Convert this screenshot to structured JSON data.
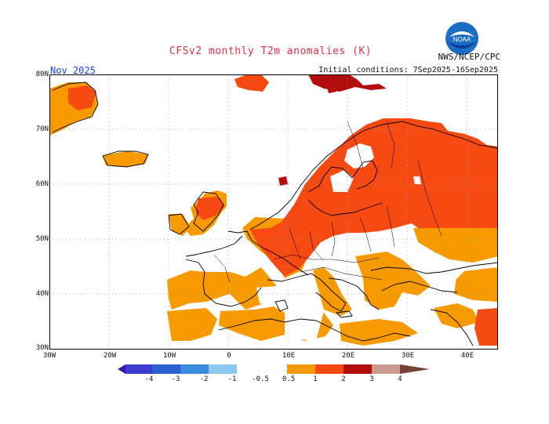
{
  "title": "CFSv2 monthly T2m anomalies (K)",
  "agency": "NWS/NCEP/CPC",
  "logo_text": "NOAA",
  "month": "Nov 2025",
  "initial_conditions": "Initial conditions: 7Sep2025-16Sep2025",
  "lat_labels": [
    "80N",
    "70N",
    "60N",
    "50N",
    "40N",
    "30N"
  ],
  "lon_labels": [
    "30W",
    "20W",
    "10W",
    "0",
    "10E",
    "20E",
    "30E",
    "40E"
  ],
  "colorbar": {
    "labels": [
      "-4",
      "-3",
      "-2",
      "-1",
      "-0.5",
      "0.5",
      "1",
      "2",
      "3",
      "4"
    ],
    "colors": {
      "lt_-4": "#3a1aa0",
      "-4_-3": "#3c3cd0",
      "-3_-2": "#2a60d0",
      "-2_-1": "#3a8ae0",
      "-1_-0.5": "#8cc8f0",
      "-0.5_0.5": "#ffffff",
      "0.5_1": "#f79a00",
      "1_2": "#f64a12",
      "2_3": "#b30e0e",
      "3_4": "#cc9a90",
      "gt_4": "#7a4038"
    }
  },
  "colors": {
    "coast": "#000000",
    "grid": "#999999",
    "frame": "#000000"
  }
}
